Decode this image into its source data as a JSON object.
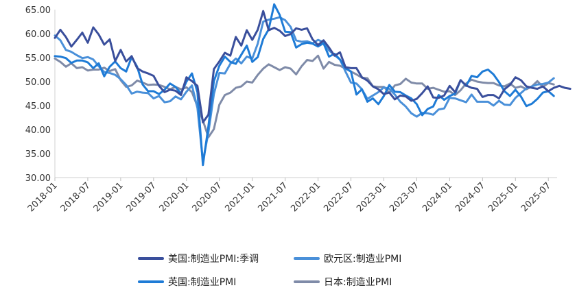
{
  "chart_data": {
    "type": "line",
    "title": "",
    "xlabel": "",
    "ylabel": "",
    "ylim": [
      30,
      65
    ],
    "yticks": [
      "30.00",
      "35.00",
      "40.00",
      "45.00",
      "50.00",
      "55.00",
      "60.00",
      "65.00"
    ],
    "xticks": [
      "2018-01",
      "2018-07",
      "2019-01",
      "2019-07",
      "2020-01",
      "2020-07",
      "2021-01",
      "2021-07",
      "2022-01",
      "2022-07",
      "2023-01",
      "2023-07",
      "2024-01",
      "2024-07",
      "2025-01",
      "2025-07"
    ],
    "grid": false,
    "legend_position": "bottom",
    "x_start": "2018-01",
    "series": [
      {
        "name": "美国:制造业PMI:季调",
        "color": "#3a4f9c",
        "values": [
          59.1,
          60.8,
          59.3,
          57.3,
          58.7,
          60.2,
          58.1,
          61.3,
          59.8,
          57.7,
          58.8,
          54.3,
          56.6,
          54.2,
          55.3,
          52.8,
          52.1,
          51.7,
          51.2,
          49.1,
          47.8,
          48.3,
          48.1,
          47.2,
          50.9,
          50.1,
          49.1,
          41.5,
          43.1,
          52.6,
          54.2,
          56.0,
          55.4,
          59.3,
          57.5,
          60.7,
          58.7,
          60.8,
          64.7,
          60.7,
          61.2,
          60.6,
          59.5,
          59.9,
          61.1,
          60.8,
          61.1,
          58.8,
          57.6,
          58.6,
          57.1,
          55.4,
          56.1,
          53.0,
          52.8,
          52.8,
          50.9,
          50.2,
          49.0,
          48.4,
          47.4,
          47.7,
          46.3,
          47.1,
          46.9,
          46.0,
          46.4,
          47.6,
          49.0,
          46.7,
          46.6,
          47.1,
          49.1,
          47.8,
          50.3,
          49.2,
          48.7,
          48.5,
          46.8,
          47.2,
          47.2,
          46.5,
          48.4,
          49.3,
          50.9,
          50.3,
          49.0,
          48.7,
          48.5,
          49.0,
          48.0,
          48.7,
          49.1,
          48.7,
          48.5
        ]
      },
      {
        "name": "欧元区:制造业PMI",
        "color": "#4a90d9",
        "values": [
          59.6,
          58.6,
          56.6,
          56.2,
          55.5,
          54.9,
          55.1,
          54.6,
          53.2,
          52.0,
          51.8,
          51.4,
          50.5,
          49.3,
          47.5,
          47.9,
          47.7,
          47.6,
          46.5,
          47.0,
          45.7,
          45.9,
          46.9,
          46.3,
          47.9,
          49.2,
          44.5,
          33.4,
          39.4,
          47.4,
          51.8,
          51.7,
          53.7,
          54.8,
          53.8,
          55.2,
          54.8,
          57.9,
          62.5,
          62.9,
          63.1,
          63.4,
          62.8,
          61.4,
          58.6,
          58.3,
          58.4,
          58.0,
          58.7,
          58.2,
          56.5,
          55.5,
          54.6,
          52.1,
          49.8,
          49.6,
          48.4,
          46.4,
          47.1,
          47.8,
          48.8,
          48.5,
          47.3,
          45.8,
          44.8,
          43.4,
          42.7,
          43.5,
          43.4,
          43.1,
          44.2,
          44.4,
          46.6,
          46.5,
          46.1,
          45.7,
          47.3,
          45.8,
          45.8,
          45.8,
          45.0,
          46.0,
          45.2,
          45.1,
          46.6,
          47.6,
          48.6,
          49.0,
          49.4,
          49.5,
          49.8,
          50.7
        ]
      },
      {
        "name": "英国:制造业PMI",
        "color": "#1e7bd6",
        "values": [
          55.3,
          55.2,
          54.9,
          53.9,
          54.4,
          54.4,
          54.0,
          52.8,
          53.8,
          51.1,
          53.1,
          54.2,
          52.8,
          52.1,
          55.1,
          53.1,
          49.4,
          48.0,
          48.0,
          47.4,
          48.3,
          49.6,
          48.9,
          47.5,
          50.0,
          51.7,
          47.8,
          32.6,
          40.7,
          50.1,
          53.3,
          55.2,
          54.1,
          53.7,
          55.6,
          57.5,
          54.1,
          55.1,
          58.9,
          60.9,
          66.1,
          63.9,
          60.4,
          60.3,
          57.1,
          57.8,
          58.1,
          57.9,
          57.3,
          58.0,
          55.2,
          55.8,
          54.6,
          52.8,
          52.1,
          47.3,
          48.4,
          45.8,
          46.5,
          45.3,
          47.0,
          49.3,
          47.9,
          47.8,
          47.1,
          46.5,
          45.3,
          43.0,
          44.3,
          44.8,
          47.2,
          46.2,
          47.0,
          47.5,
          50.3,
          49.1,
          51.2,
          50.9,
          52.1,
          52.5,
          51.5,
          49.9,
          48.0,
          47.0,
          48.3,
          46.9,
          44.9,
          45.4,
          46.4,
          47.7,
          48.0,
          47.0
        ]
      },
      {
        "name": "日本:制造业PMI",
        "color": "#7f8ba8",
        "values": [
          54.8,
          54.1,
          53.1,
          53.8,
          52.8,
          53.0,
          52.3,
          52.5,
          52.5,
          52.9,
          52.2,
          52.6,
          50.3,
          48.9,
          49.2,
          50.2,
          49.8,
          49.3,
          49.4,
          49.3,
          48.9,
          48.4,
          48.9,
          48.4,
          48.8,
          47.8,
          44.8,
          41.9,
          38.4,
          40.1,
          45.2,
          47.2,
          47.7,
          48.7,
          49.0,
          50.0,
          49.8,
          51.4,
          52.7,
          53.6,
          53.0,
          52.4,
          53.0,
          52.7,
          51.5,
          53.2,
          54.5,
          54.3,
          55.4,
          52.7,
          54.1,
          53.5,
          53.3,
          52.7,
          52.1,
          51.5,
          50.8,
          50.7,
          49.0,
          48.9,
          48.9,
          47.7,
          49.2,
          49.5,
          50.6,
          49.8,
          49.6,
          49.6,
          48.5,
          48.7,
          48.3,
          47.9,
          48.0,
          47.2,
          48.2,
          49.6,
          50.4,
          50.0,
          49.8,
          49.7,
          49.7,
          49.2,
          49.0,
          49.6,
          48.7,
          49.0,
          48.4,
          49.0,
          50.1,
          48.9,
          49.7,
          49.4
        ]
      }
    ]
  }
}
